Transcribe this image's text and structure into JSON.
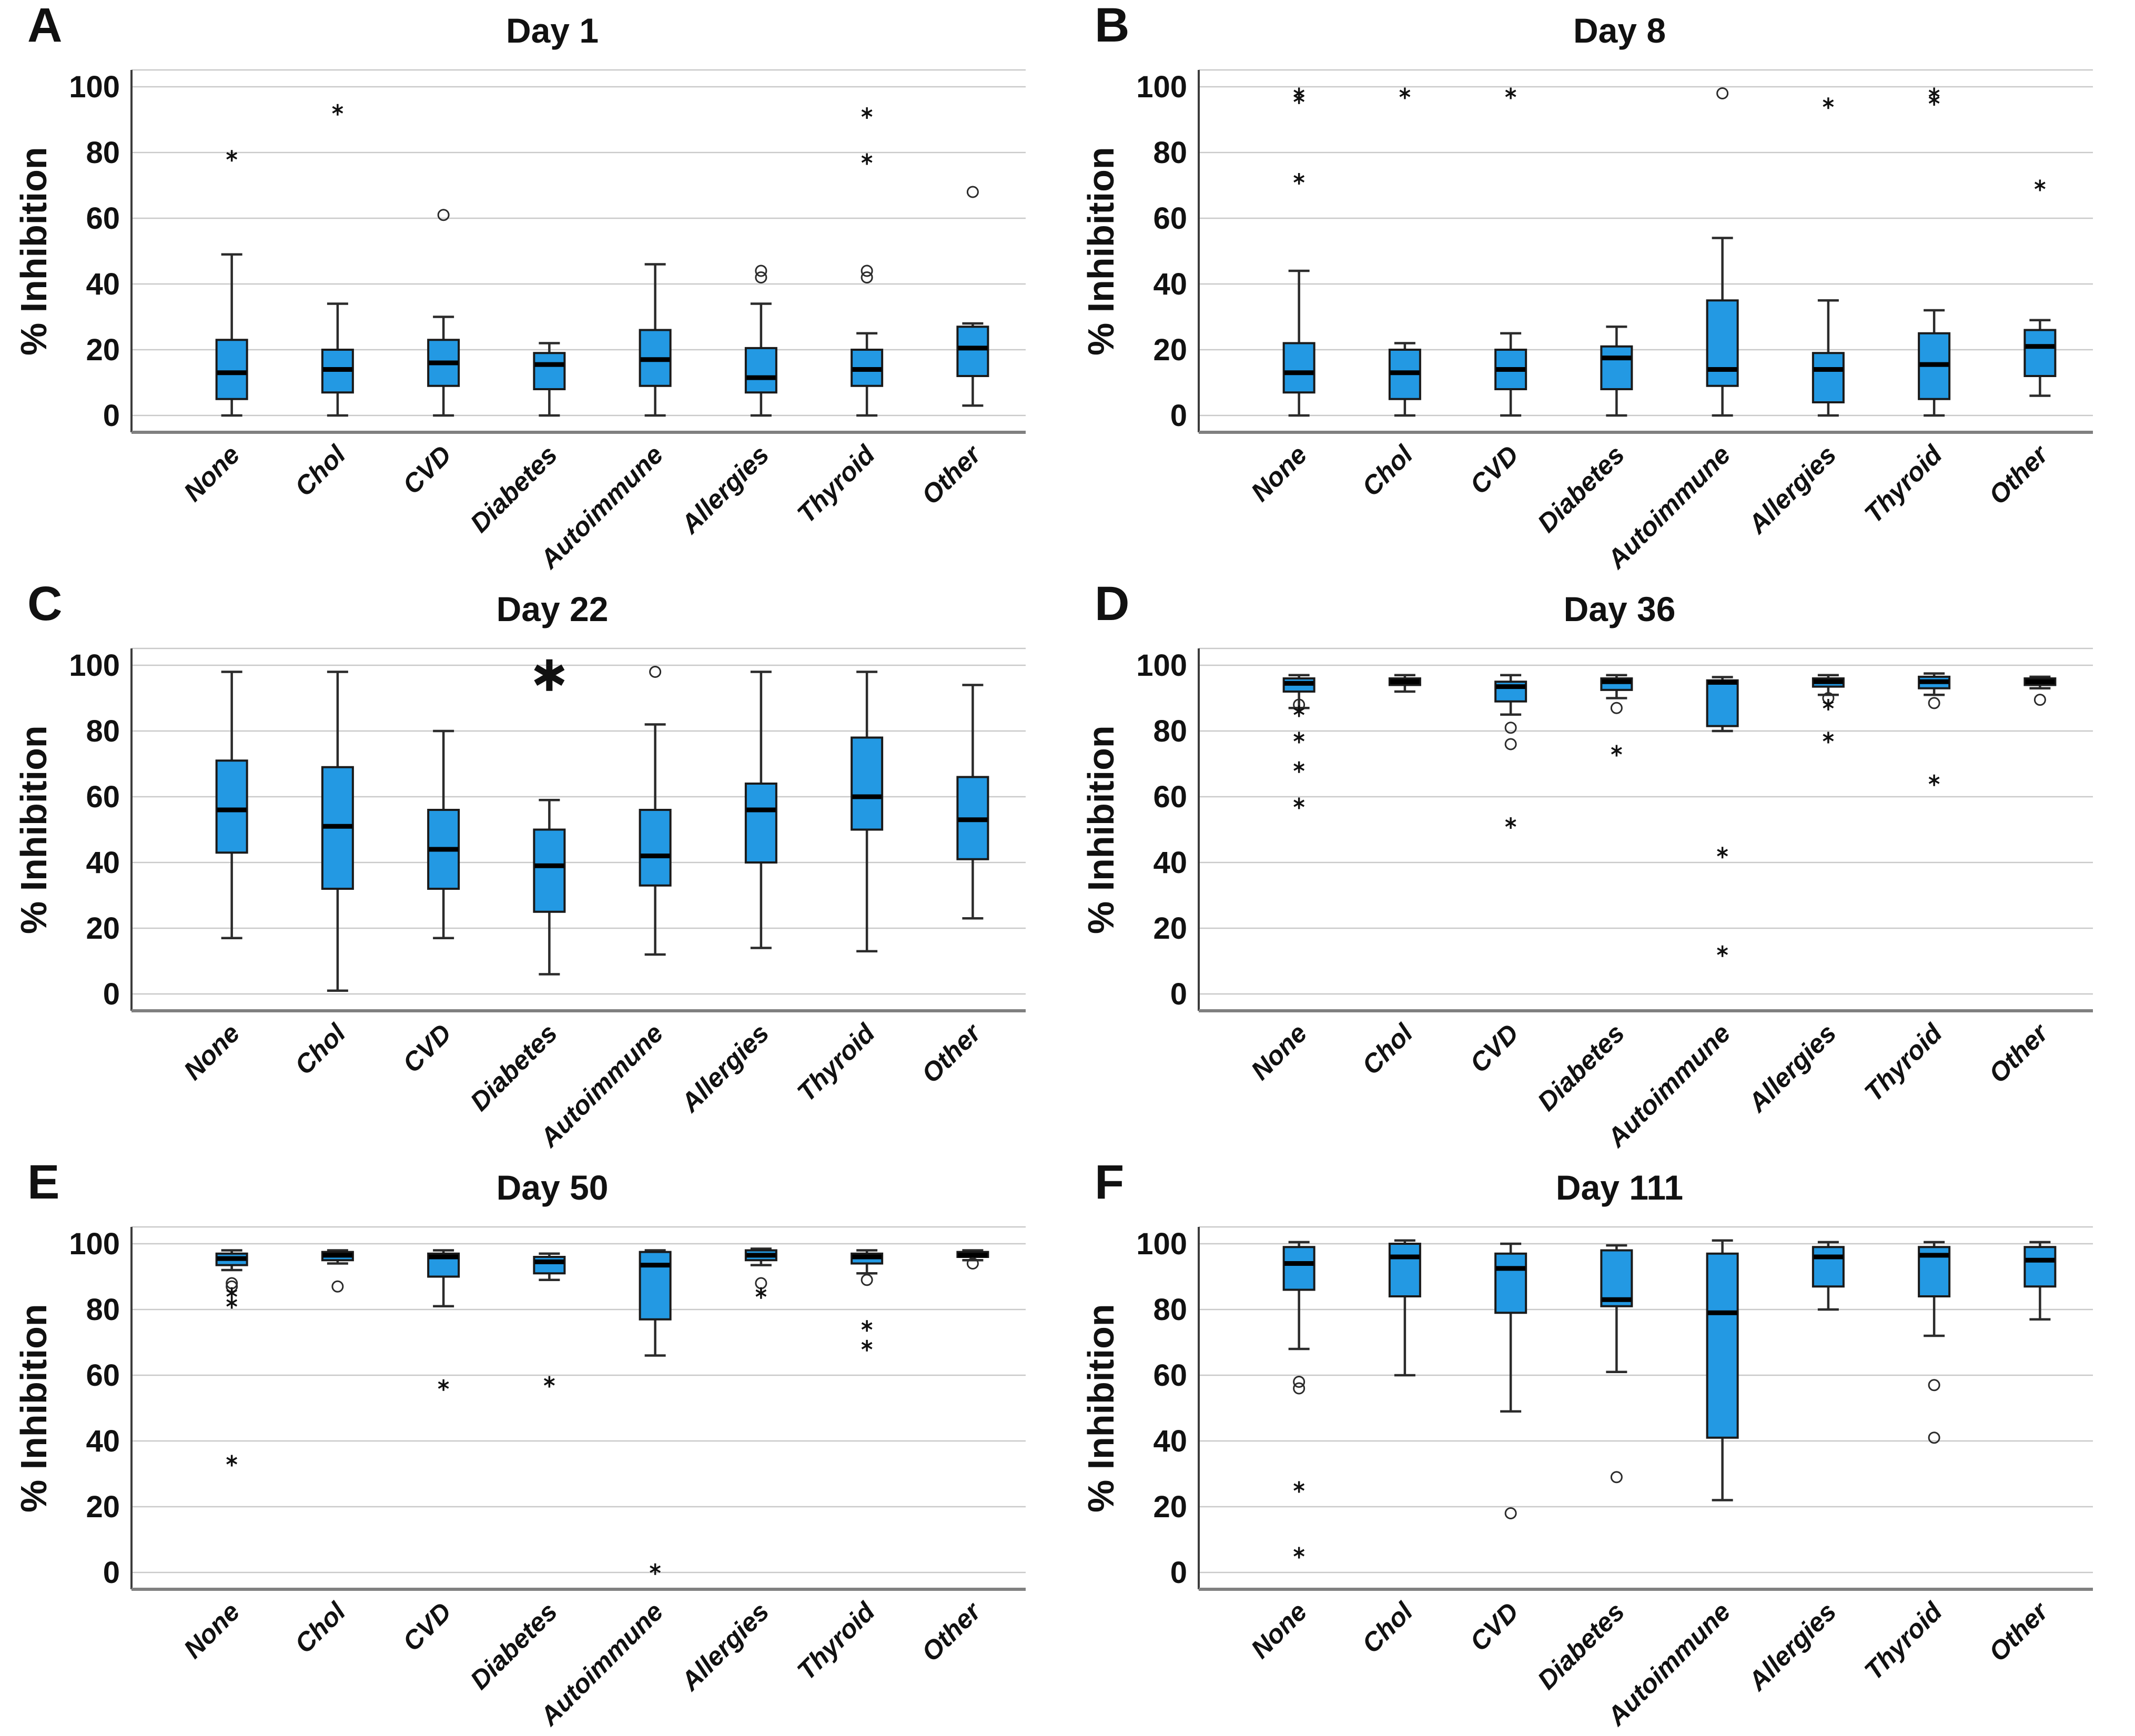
{
  "figure": {
    "description": "Six-panel box plot figure of % Inhibition by comorbidity group across study days",
    "panel_letters": [
      "A",
      "B",
      "C",
      "D",
      "E",
      "F"
    ]
  },
  "colors": {
    "box_fill": "#2399E3",
    "box_stroke": "#1a1a1a",
    "median": "#000000",
    "whisker": "#2b2b2b",
    "grid": "#c9c9c9",
    "spine_bottom": "#808080",
    "spine_left": "#3c3c3c",
    "text": "#111111",
    "background": "#ffffff"
  },
  "chart_data": [
    {
      "type": "box",
      "letter": "A",
      "title": "Day 1",
      "ylabel": "% Inhibition",
      "yticks": [
        0,
        20,
        40,
        60,
        80,
        100
      ],
      "ylim": [
        -5,
        105
      ],
      "grid": true,
      "categories": [
        "None",
        "Chol",
        "CVD",
        "Diabetes",
        "Autoimmune",
        "Allergies",
        "Thyroid",
        "Other"
      ],
      "boxes": [
        {
          "category": "None",
          "whisker_low": 0,
          "q1": 5,
          "median": 13,
          "q3": 23,
          "whisker_high": 49,
          "outliers_circle": [],
          "outliers_star": [
            79
          ]
        },
        {
          "category": "Chol",
          "whisker_low": 0,
          "q1": 7,
          "median": 14,
          "q3": 20,
          "whisker_high": 34,
          "outliers_circle": [],
          "outliers_star": [
            93
          ]
        },
        {
          "category": "CVD",
          "whisker_low": 0,
          "q1": 9,
          "median": 16,
          "q3": 23,
          "whisker_high": 30,
          "outliers_circle": [
            61
          ],
          "outliers_star": []
        },
        {
          "category": "Diabetes",
          "whisker_low": 0,
          "q1": 8,
          "median": 15.5,
          "q3": 19,
          "whisker_high": 22,
          "outliers_circle": [],
          "outliers_star": []
        },
        {
          "category": "Autoimmune",
          "whisker_low": 0,
          "q1": 9,
          "median": 17,
          "q3": 26,
          "whisker_high": 46,
          "outliers_circle": [],
          "outliers_star": []
        },
        {
          "category": "Allergies",
          "whisker_low": 0,
          "q1": 7,
          "median": 11.5,
          "q3": 20.5,
          "whisker_high": 34,
          "outliers_circle": [
            44,
            42
          ],
          "outliers_star": []
        },
        {
          "category": "Thyroid",
          "whisker_low": 0,
          "q1": 9,
          "median": 14,
          "q3": 20,
          "whisker_high": 25,
          "outliers_circle": [
            44,
            42
          ],
          "outliers_star": [
            92,
            78
          ]
        },
        {
          "category": "Other",
          "whisker_low": 3,
          "q1": 12,
          "median": 20.5,
          "q3": 27,
          "whisker_high": 28,
          "outliers_circle": [
            68
          ],
          "outliers_star": []
        }
      ],
      "annotations": []
    },
    {
      "type": "box",
      "letter": "B",
      "title": "Day 8",
      "ylabel": "% Inhibition",
      "yticks": [
        0,
        20,
        40,
        60,
        80,
        100
      ],
      "ylim": [
        -5,
        105
      ],
      "grid": true,
      "categories": [
        "None",
        "Chol",
        "CVD",
        "Diabetes",
        "Autoimmune",
        "Allergies",
        "Thyroid",
        "Other"
      ],
      "boxes": [
        {
          "category": "None",
          "whisker_low": 0,
          "q1": 7,
          "median": 13,
          "q3": 22,
          "whisker_high": 44,
          "outliers_circle": [],
          "outliers_star": [
            98,
            96.5,
            72
          ]
        },
        {
          "category": "Chol",
          "whisker_low": 0,
          "q1": 5,
          "median": 13,
          "q3": 20,
          "whisker_high": 22,
          "outliers_circle": [],
          "outliers_star": [
            98
          ]
        },
        {
          "category": "CVD",
          "whisker_low": 0,
          "q1": 8,
          "median": 14,
          "q3": 20,
          "whisker_high": 25,
          "outliers_circle": [],
          "outliers_star": [
            98
          ]
        },
        {
          "category": "Diabetes",
          "whisker_low": 0,
          "q1": 8,
          "median": 17.5,
          "q3": 21,
          "whisker_high": 27,
          "outliers_circle": [],
          "outliers_star": []
        },
        {
          "category": "Autoimmune",
          "whisker_low": 0,
          "q1": 9,
          "median": 14,
          "q3": 35,
          "whisker_high": 54,
          "outliers_circle": [
            98
          ],
          "outliers_star": []
        },
        {
          "category": "Allergies",
          "whisker_low": 0,
          "q1": 4,
          "median": 14,
          "q3": 19,
          "whisker_high": 35,
          "outliers_circle": [],
          "outliers_star": [
            95
          ]
        },
        {
          "category": "Thyroid",
          "whisker_low": 0,
          "q1": 5,
          "median": 15.5,
          "q3": 25,
          "whisker_high": 32,
          "outliers_circle": [],
          "outliers_star": [
            98,
            96
          ]
        },
        {
          "category": "Other",
          "whisker_low": 6,
          "q1": 12,
          "median": 21,
          "q3": 26,
          "whisker_high": 29,
          "outliers_circle": [],
          "outliers_star": [
            70
          ]
        }
      ],
      "annotations": []
    },
    {
      "type": "box",
      "letter": "C",
      "title": "Day 22",
      "ylabel": "% Inhibition",
      "yticks": [
        0,
        20,
        40,
        60,
        80,
        100
      ],
      "ylim": [
        -5,
        105
      ],
      "grid": true,
      "categories": [
        "None",
        "Chol",
        "CVD",
        "Diabetes",
        "Autoimmune",
        "Allergies",
        "Thyroid",
        "Other"
      ],
      "boxes": [
        {
          "category": "None",
          "whisker_low": 17,
          "q1": 43,
          "median": 56,
          "q3": 71,
          "whisker_high": 98,
          "outliers_circle": [],
          "outliers_star": []
        },
        {
          "category": "Chol",
          "whisker_low": 1,
          "q1": 32,
          "median": 51,
          "q3": 69,
          "whisker_high": 98,
          "outliers_circle": [],
          "outliers_star": []
        },
        {
          "category": "CVD",
          "whisker_low": 17,
          "q1": 32,
          "median": 44,
          "q3": 56,
          "whisker_high": 80,
          "outliers_circle": [],
          "outliers_star": []
        },
        {
          "category": "Diabetes",
          "whisker_low": 6,
          "q1": 25,
          "median": 39,
          "q3": 50,
          "whisker_high": 59,
          "outliers_circle": [],
          "outliers_star": []
        },
        {
          "category": "Autoimmune",
          "whisker_low": 12,
          "q1": 33,
          "median": 42,
          "q3": 56,
          "whisker_high": 82,
          "outliers_circle": [
            98
          ],
          "outliers_star": []
        },
        {
          "category": "Allergies",
          "whisker_low": 14,
          "q1": 40,
          "median": 56,
          "q3": 64,
          "whisker_high": 98,
          "outliers_circle": [],
          "outliers_star": []
        },
        {
          "category": "Thyroid",
          "whisker_low": 13,
          "q1": 50,
          "median": 60,
          "q3": 78,
          "whisker_high": 98,
          "outliers_circle": [],
          "outliers_star": []
        },
        {
          "category": "Other",
          "whisker_low": 23,
          "q1": 41,
          "median": 53,
          "q3": 66,
          "whisker_high": 94,
          "outliers_circle": [],
          "outliers_star": []
        }
      ],
      "annotations": [
        {
          "symbol": "*",
          "meaning": "significance marker",
          "category": "Diabetes",
          "y": 97
        }
      ]
    },
    {
      "type": "box",
      "letter": "D",
      "title": "Day 36",
      "ylabel": "% Inhibition",
      "yticks": [
        0,
        20,
        40,
        60,
        80,
        100
      ],
      "ylim": [
        -5,
        105
      ],
      "grid": true,
      "categories": [
        "None",
        "Chol",
        "CVD",
        "Diabetes",
        "Autoimmune",
        "Allergies",
        "Thyroid",
        "Other"
      ],
      "boxes": [
        {
          "category": "None",
          "whisker_low": 87,
          "q1": 92,
          "median": 94.5,
          "q3": 96,
          "whisker_high": 97,
          "outliers_circle": [
            88
          ],
          "outliers_star": [
            86,
            78,
            69,
            58
          ]
        },
        {
          "category": "Chol",
          "whisker_low": 92,
          "q1": 94,
          "median": 95,
          "q3": 96,
          "whisker_high": 97,
          "outliers_circle": [],
          "outliers_star": []
        },
        {
          "category": "CVD",
          "whisker_low": 85,
          "q1": 89,
          "median": 93.5,
          "q3": 95,
          "whisker_high": 97,
          "outliers_circle": [
            81,
            76
          ],
          "outliers_star": [
            52
          ]
        },
        {
          "category": "Diabetes",
          "whisker_low": 90,
          "q1": 92.5,
          "median": 95,
          "q3": 96,
          "whisker_high": 97,
          "outliers_circle": [
            87
          ],
          "outliers_star": [
            74
          ]
        },
        {
          "category": "Autoimmune",
          "whisker_low": 80,
          "q1": 81.5,
          "median": 94.8,
          "q3": 95.4,
          "whisker_high": 96.4,
          "outliers_circle": [],
          "outliers_star": [
            43,
            13
          ]
        },
        {
          "category": "Allergies",
          "whisker_low": 91,
          "q1": 93.5,
          "median": 95,
          "q3": 96,
          "whisker_high": 97,
          "outliers_circle": [
            90
          ],
          "outliers_star": [
            88,
            78
          ]
        },
        {
          "category": "Thyroid",
          "whisker_low": 91,
          "q1": 93,
          "median": 95,
          "q3": 96.5,
          "whisker_high": 97.5,
          "outliers_circle": [
            88.5
          ],
          "outliers_star": [
            65
          ]
        },
        {
          "category": "Other",
          "whisker_low": 93,
          "q1": 94,
          "median": 95,
          "q3": 96,
          "whisker_high": 96.5,
          "outliers_circle": [
            89.5
          ],
          "outliers_star": []
        }
      ],
      "annotations": []
    },
    {
      "type": "box",
      "letter": "E",
      "title": "Day 50",
      "ylabel": "% Inhibition",
      "yticks": [
        0,
        20,
        40,
        60,
        80,
        100
      ],
      "ylim": [
        -5,
        105
      ],
      "grid": true,
      "categories": [
        "None",
        "Chol",
        "CVD",
        "Diabetes",
        "Autoimmune",
        "Allergies",
        "Thyroid",
        "Other"
      ],
      "boxes": [
        {
          "category": "None",
          "whisker_low": 92,
          "q1": 93.5,
          "median": 95.5,
          "q3": 97,
          "whisker_high": 98,
          "outliers_circle": [
            88,
            87
          ],
          "outliers_star": [
            85,
            82,
            34
          ]
        },
        {
          "category": "Chol",
          "whisker_low": 94,
          "q1": 95,
          "median": 96.5,
          "q3": 97.5,
          "whisker_high": 98,
          "outliers_circle": [
            87
          ],
          "outliers_star": []
        },
        {
          "category": "CVD",
          "whisker_low": 81,
          "q1": 90,
          "median": 96,
          "q3": 97,
          "whisker_high": 98,
          "outliers_circle": [],
          "outliers_star": [
            57
          ]
        },
        {
          "category": "Diabetes",
          "whisker_low": 89,
          "q1": 91,
          "median": 94.5,
          "q3": 96,
          "whisker_high": 97,
          "outliers_circle": [],
          "outliers_star": [
            58
          ]
        },
        {
          "category": "Autoimmune",
          "whisker_low": 66,
          "q1": 77,
          "median": 93.5,
          "q3": 97.5,
          "whisker_high": 98,
          "outliers_circle": [],
          "outliers_star": [
            1
          ]
        },
        {
          "category": "Allergies",
          "whisker_low": 93.5,
          "q1": 95,
          "median": 96.5,
          "q3": 98,
          "whisker_high": 98.5,
          "outliers_circle": [
            88
          ],
          "outliers_star": [
            85
          ]
        },
        {
          "category": "Thyroid",
          "whisker_low": 91,
          "q1": 94,
          "median": 96,
          "q3": 97,
          "whisker_high": 98,
          "outliers_circle": [
            89
          ],
          "outliers_star": [
            75,
            69
          ]
        },
        {
          "category": "Other",
          "whisker_low": 95,
          "q1": 96,
          "median": 96.5,
          "q3": 97.5,
          "whisker_high": 98,
          "outliers_circle": [
            94
          ],
          "outliers_star": []
        }
      ],
      "annotations": []
    },
    {
      "type": "box",
      "letter": "F",
      "title": "Day 111",
      "ylabel": "% Inhibition",
      "yticks": [
        0,
        20,
        40,
        60,
        80,
        100
      ],
      "ylim": [
        -5,
        105
      ],
      "grid": true,
      "categories": [
        "None",
        "Chol",
        "CVD",
        "Diabetes",
        "Autoimmune",
        "Allergies",
        "Thyroid",
        "Other"
      ],
      "boxes": [
        {
          "category": "None",
          "whisker_low": 68,
          "q1": 86,
          "median": 94,
          "q3": 99,
          "whisker_high": 100.5,
          "outliers_circle": [
            58,
            56
          ],
          "outliers_star": [
            26,
            6
          ]
        },
        {
          "category": "Chol",
          "whisker_low": 60,
          "q1": 84,
          "median": 96,
          "q3": 100,
          "whisker_high": 101,
          "outliers_circle": [],
          "outliers_star": []
        },
        {
          "category": "CVD",
          "whisker_low": 49,
          "q1": 79,
          "median": 92.5,
          "q3": 97,
          "whisker_high": 100,
          "outliers_circle": [
            18
          ],
          "outliers_star": []
        },
        {
          "category": "Diabetes",
          "whisker_low": 61,
          "q1": 81,
          "median": 83,
          "q3": 98,
          "whisker_high": 99.5,
          "outliers_circle": [
            29
          ],
          "outliers_star": []
        },
        {
          "category": "Autoimmune",
          "whisker_low": 22,
          "q1": 41,
          "median": 79,
          "q3": 97,
          "whisker_high": 101,
          "outliers_circle": [],
          "outliers_star": []
        },
        {
          "category": "Allergies",
          "whisker_low": 80,
          "q1": 87,
          "median": 96,
          "q3": 99,
          "whisker_high": 100.5,
          "outliers_circle": [],
          "outliers_star": []
        },
        {
          "category": "Thyroid",
          "whisker_low": 72,
          "q1": 84,
          "median": 96.5,
          "q3": 99,
          "whisker_high": 100.5,
          "outliers_circle": [
            57,
            41
          ],
          "outliers_star": []
        },
        {
          "category": "Other",
          "whisker_low": 77,
          "q1": 87,
          "median": 95,
          "q3": 99,
          "whisker_high": 100.5,
          "outliers_circle": [],
          "outliers_star": []
        }
      ],
      "annotations": []
    }
  ]
}
